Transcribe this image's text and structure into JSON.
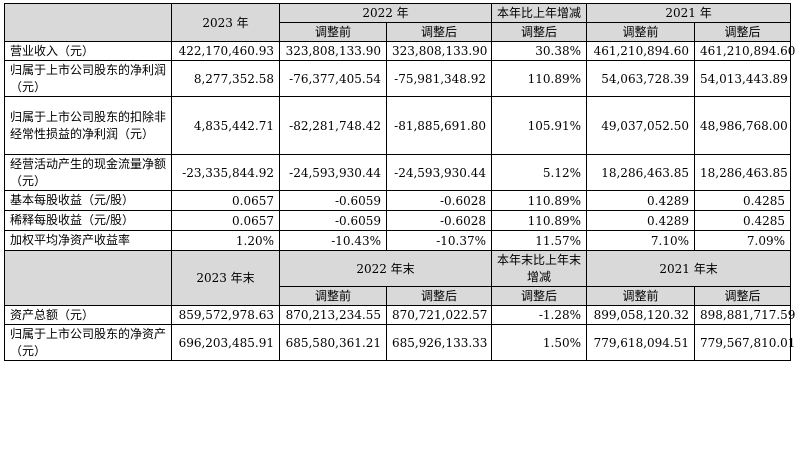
{
  "header1": {
    "year_a": "2023 年",
    "year_b": "2022 年",
    "change": "本年比上年增减",
    "year_c": "2021 年",
    "sub": [
      "调整前",
      "调整后",
      "调整后",
      "调整前",
      "调整后"
    ]
  },
  "rows1": [
    {
      "label": "营业收入（元）",
      "v": [
        "422,170,460.93",
        "323,808,133.90",
        "323,808,133.90",
        "30.38%",
        "461,210,894.60",
        "461,210,894.60"
      ]
    },
    {
      "label": "归属于上市公司股东的净利润（元）",
      "v": [
        "8,277,352.58",
        "-76,377,405.54",
        "-75,981,348.92",
        "110.89%",
        "54,063,728.39",
        "54,013,443.89"
      ]
    },
    {
      "label": "归属于上市公司股东的扣除非经常性损益的净利润（元）",
      "v": [
        "4,835,442.71",
        "-82,281,748.42",
        "-81,885,691.80",
        "105.91%",
        "49,037,052.50",
        "48,986,768.00"
      ]
    },
    {
      "label": "经营活动产生的现金流量净额（元）",
      "v": [
        "-23,335,844.92",
        "-24,593,930.44",
        "-24,593,930.44",
        "5.12%",
        "18,286,463.85",
        "18,286,463.85"
      ]
    },
    {
      "label": "基本每股收益（元/股）",
      "v": [
        "0.0657",
        "-0.6059",
        "-0.6028",
        "110.89%",
        "0.4289",
        "0.4285"
      ]
    },
    {
      "label": "稀释每股收益（元/股）",
      "v": [
        "0.0657",
        "-0.6059",
        "-0.6028",
        "110.89%",
        "0.4289",
        "0.4285"
      ]
    },
    {
      "label": "加权平均净资产收益率",
      "v": [
        "1.20%",
        "-10.43%",
        "-10.37%",
        "11.57%",
        "7.10%",
        "7.09%"
      ]
    }
  ],
  "header2": {
    "year_a": "2023 年末",
    "year_b": "2022 年末",
    "change": "本年末比上年末增减",
    "year_c": "2021 年末",
    "sub": [
      "调整前",
      "调整后",
      "调整后",
      "调整前",
      "调整后"
    ]
  },
  "rows2": [
    {
      "label": "资产总额（元）",
      "v": [
        "859,572,978.63",
        "870,213,234.55",
        "870,721,022.57",
        "-1.28%",
        "899,058,120.32",
        "898,881,717.59"
      ]
    },
    {
      "label": "归属于上市公司股东的净资产（元）",
      "v": [
        "696,203,485.91",
        "685,580,361.21",
        "685,926,133.33",
        "1.50%",
        "779,618,094.51",
        "779,567,810.01"
      ]
    }
  ]
}
